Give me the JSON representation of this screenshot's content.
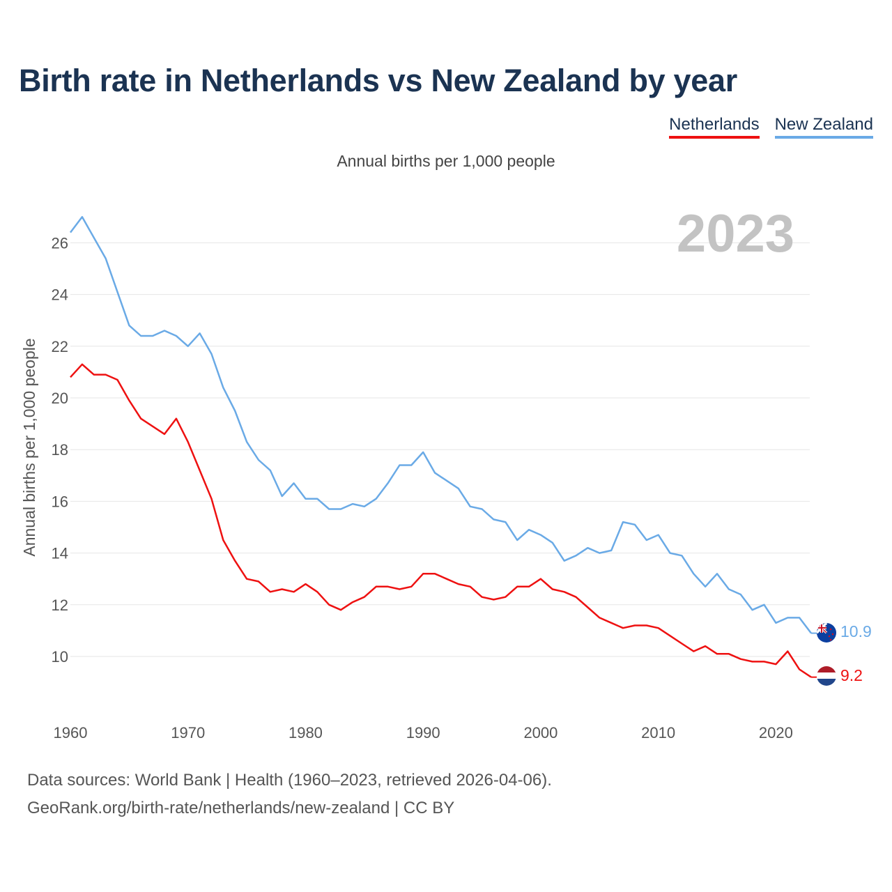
{
  "chart_data": {
    "type": "line",
    "title": "Birth rate in Netherlands vs New Zealand by year",
    "subtitle": "Annual births per 1,000 people",
    "ylabel": "Annual births per 1,000 people",
    "xlabel": "",
    "year_badge": "2023",
    "xlim": [
      1960,
      2023
    ],
    "ylim": [
      8,
      27
    ],
    "x_ticks": [
      1960,
      1970,
      1980,
      1990,
      2000,
      2010,
      2020
    ],
    "y_ticks": [
      10,
      12,
      14,
      16,
      18,
      20,
      22,
      24,
      26
    ],
    "grid": true,
    "legend_position": "top-right",
    "x": [
      1960,
      1961,
      1962,
      1963,
      1964,
      1965,
      1966,
      1967,
      1968,
      1969,
      1970,
      1971,
      1972,
      1973,
      1974,
      1975,
      1976,
      1977,
      1978,
      1979,
      1980,
      1981,
      1982,
      1983,
      1984,
      1985,
      1986,
      1987,
      1988,
      1989,
      1990,
      1991,
      1992,
      1993,
      1994,
      1995,
      1996,
      1997,
      1998,
      1999,
      2000,
      2001,
      2002,
      2003,
      2004,
      2005,
      2006,
      2007,
      2008,
      2009,
      2010,
      2011,
      2012,
      2013,
      2014,
      2015,
      2016,
      2017,
      2018,
      2019,
      2020,
      2021,
      2022,
      2023
    ],
    "series": [
      {
        "name": "Netherlands",
        "color": "#ee1111",
        "end_label": "9.2",
        "values": [
          20.8,
          21.3,
          20.9,
          20.9,
          20.7,
          19.9,
          19.2,
          18.9,
          18.6,
          19.2,
          18.3,
          17.2,
          16.1,
          14.5,
          13.7,
          13.0,
          12.9,
          12.5,
          12.6,
          12.5,
          12.8,
          12.5,
          12.0,
          11.8,
          12.1,
          12.3,
          12.7,
          12.7,
          12.6,
          12.7,
          13.2,
          13.2,
          13.0,
          12.8,
          12.7,
          12.3,
          12.2,
          12.3,
          12.7,
          12.7,
          13.0,
          12.6,
          12.5,
          12.3,
          11.9,
          11.5,
          11.3,
          11.1,
          11.2,
          11.2,
          11.1,
          10.8,
          10.5,
          10.2,
          10.4,
          10.1,
          10.1,
          9.9,
          9.8,
          9.8,
          9.7,
          10.2,
          9.5,
          9.2
        ]
      },
      {
        "name": "New Zealand",
        "color": "#6aaae6",
        "end_label": "10.9",
        "values": [
          26.4,
          27.0,
          26.2,
          25.4,
          24.1,
          22.8,
          22.4,
          22.4,
          22.6,
          22.4,
          22.0,
          22.5,
          21.7,
          20.4,
          19.5,
          18.3,
          17.6,
          17.2,
          16.2,
          16.7,
          16.1,
          16.1,
          15.7,
          15.7,
          15.9,
          15.8,
          16.1,
          16.7,
          17.4,
          17.4,
          17.9,
          17.1,
          16.8,
          16.5,
          15.8,
          15.7,
          15.3,
          15.2,
          14.5,
          14.9,
          14.7,
          14.4,
          13.7,
          13.9,
          14.2,
          14.0,
          14.1,
          15.2,
          15.1,
          14.5,
          14.7,
          14.0,
          13.9,
          13.2,
          12.7,
          13.2,
          12.6,
          12.4,
          11.8,
          12.0,
          11.3,
          11.5,
          11.5,
          10.9
        ]
      }
    ]
  },
  "footer": {
    "line1": "Data sources: World Bank | Health (1960–2023, retrieved 2026-04-06).",
    "line2": "GeoRank.org/birth-rate/netherlands/new-zealand | CC BY"
  },
  "icons": {
    "netherlands": "netherlands-flag-icon",
    "new_zealand": "new-zealand-flag-icon"
  }
}
